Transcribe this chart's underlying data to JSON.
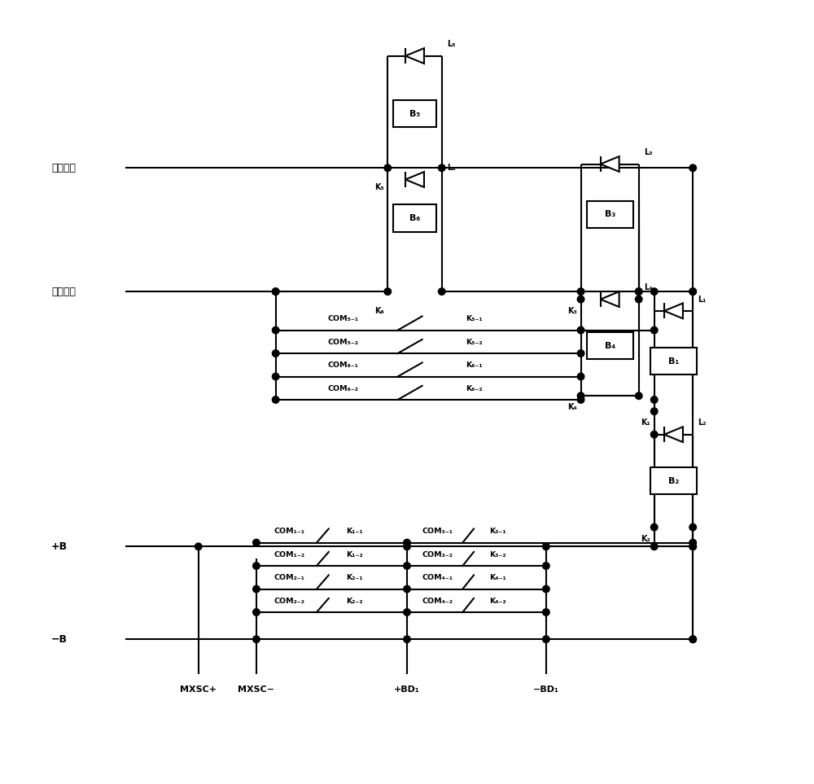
{
  "bg_color": "#ffffff",
  "line_color": "#000000",
  "lw": 1.5,
  "fig_width": 10.0,
  "fig_height": 9.63,
  "labels": {
    "duan": "断网控制",
    "bing": "并网控制",
    "plusB": "+B",
    "minusB": "−B",
    "mxsc_plus": "MXSC+",
    "mxsc_minus": "MXSC−",
    "bd1_plus": "+BD₁",
    "bd1_minus": "−BD₁"
  }
}
